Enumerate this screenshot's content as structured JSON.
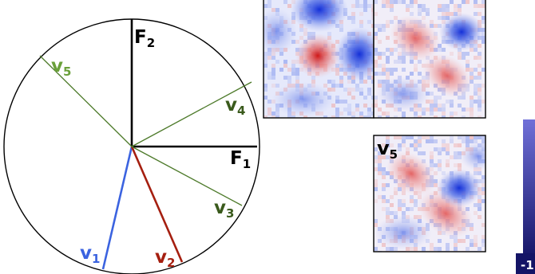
{
  "axes": {
    "f2": {
      "label": "F",
      "sub": "2",
      "color": "#000000"
    },
    "f1": {
      "label": "F",
      "sub": "1",
      "color": "#000000"
    }
  },
  "vectors": {
    "v1": {
      "label": "v",
      "sub": "1",
      "color": "#3b63e0"
    },
    "v2": {
      "label": "v",
      "sub": "2",
      "color": "#a51f10"
    },
    "v3": {
      "label": "v",
      "sub": "3",
      "color": "#3a5a1c"
    },
    "v4": {
      "label": "v",
      "sub": "4",
      "color": "#3a5a1c"
    },
    "v5": {
      "label": "v",
      "sub": "5",
      "color": "#6aa03a"
    }
  },
  "panels": {
    "v5": {
      "label": "v",
      "sub": "5"
    }
  },
  "colorbar": {
    "min_label": "-1"
  },
  "palette": {
    "red": "#d64a3c",
    "blue": "#1f3fd6",
    "line_olive": "#4d7a2a",
    "colorbar_dark": "#1a1a6e",
    "colorbar_light": "#6a6ad0"
  }
}
